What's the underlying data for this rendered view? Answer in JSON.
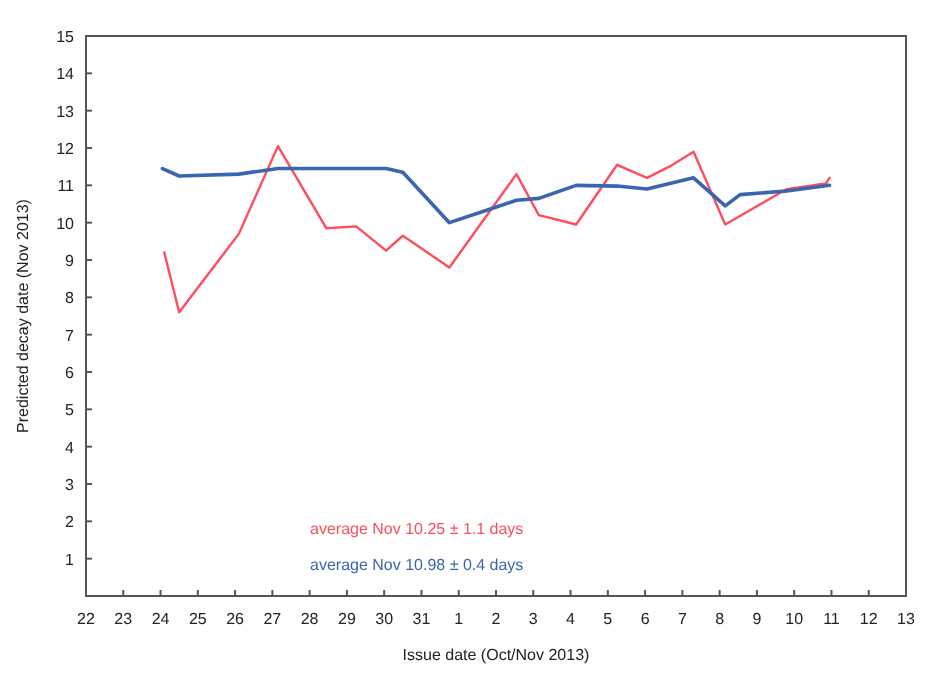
{
  "chart_data": {
    "type": "line",
    "xlabel": "Issue date (Oct/Nov 2013)",
    "ylabel": "Predicted decay date (Nov 2013)",
    "xlim": [
      "2013-10-22",
      "2013-11-13"
    ],
    "xticks": [
      {
        "value": "2013-10-22",
        "label": "22"
      },
      {
        "value": "2013-10-23",
        "label": "23"
      },
      {
        "value": "2013-10-24",
        "label": "24"
      },
      {
        "value": "2013-10-25",
        "label": "25"
      },
      {
        "value": "2013-10-26",
        "label": "26"
      },
      {
        "value": "2013-10-27",
        "label": "27"
      },
      {
        "value": "2013-10-28",
        "label": "28"
      },
      {
        "value": "2013-10-29",
        "label": "29"
      },
      {
        "value": "2013-10-30",
        "label": "30"
      },
      {
        "value": "2013-10-31",
        "label": "31"
      },
      {
        "value": "2013-11-01",
        "label": "1"
      },
      {
        "value": "2013-11-02",
        "label": "2"
      },
      {
        "value": "2013-11-03",
        "label": "3"
      },
      {
        "value": "2013-11-04",
        "label": "4"
      },
      {
        "value": "2013-11-05",
        "label": "5"
      },
      {
        "value": "2013-11-06",
        "label": "6"
      },
      {
        "value": "2013-11-07",
        "label": "7"
      },
      {
        "value": "2013-11-08",
        "label": "8"
      },
      {
        "value": "2013-11-09",
        "label": "9"
      },
      {
        "value": "2013-11-10",
        "label": "10"
      },
      {
        "value": "2013-11-11",
        "label": "11"
      },
      {
        "value": "2013-11-12",
        "label": "12"
      },
      {
        "value": "2013-11-13",
        "label": "13"
      }
    ],
    "ylim": [
      0,
      15
    ],
    "yticks": [
      1,
      2,
      3,
      4,
      5,
      6,
      7,
      8,
      9,
      10,
      11,
      12,
      13,
      14,
      15
    ],
    "series": [
      {
        "color": "#ff4d5e",
        "x": [
          "2013-10-24T02:24",
          "2013-10-24T12:00",
          "2013-10-26T02:24",
          "2013-10-27T03:36",
          "2013-10-28T10:48",
          "2013-10-29T06:00",
          "2013-10-30T01:12",
          "2013-10-30T12:00",
          "2013-10-31T18:00",
          "2013-11-02T13:12",
          "2013-11-03T03:36",
          "2013-11-04T03:36",
          "2013-11-05T06:00",
          "2013-11-06T01:12",
          "2013-11-06T15:36",
          "2013-11-07T07:12",
          "2013-11-08T03:36",
          "2013-11-09T19:12",
          "2013-11-10T20:24",
          "2013-11-10T22:48"
        ],
        "values": [
          9.2,
          7.6,
          9.7,
          12.05,
          9.85,
          9.9,
          9.25,
          9.65,
          8.8,
          11.3,
          10.2,
          9.95,
          11.55,
          11.2,
          11.5,
          11.9,
          9.95,
          10.9,
          11.05,
          11.2
        ]
      },
      {
        "color": "#3a66b0",
        "x": [
          "2013-10-24T01:12",
          "2013-10-24T12:00",
          "2013-10-26T02:24",
          "2013-10-27T03:36",
          "2013-10-30T01:12",
          "2013-10-30T12:00",
          "2013-10-31T18:00",
          "2013-11-01T22:48",
          "2013-11-02T13:12",
          "2013-11-03T03:36",
          "2013-11-04T03:36",
          "2013-11-05T06:00",
          "2013-11-06T01:12",
          "2013-11-07T07:12",
          "2013-11-08T03:36",
          "2013-11-08T13:12",
          "2013-11-09T19:12",
          "2013-11-10T22:48"
        ],
        "values": [
          11.45,
          11.25,
          11.3,
          11.45,
          11.45,
          11.35,
          10.0,
          10.4,
          10.6,
          10.65,
          11.0,
          10.98,
          10.9,
          11.2,
          10.45,
          10.75,
          10.85,
          11.0
        ]
      }
    ],
    "annotations": [
      "average Nov 10.25 ± 1.1 days",
      "average Nov 10.98 ± 0.4 days"
    ]
  }
}
